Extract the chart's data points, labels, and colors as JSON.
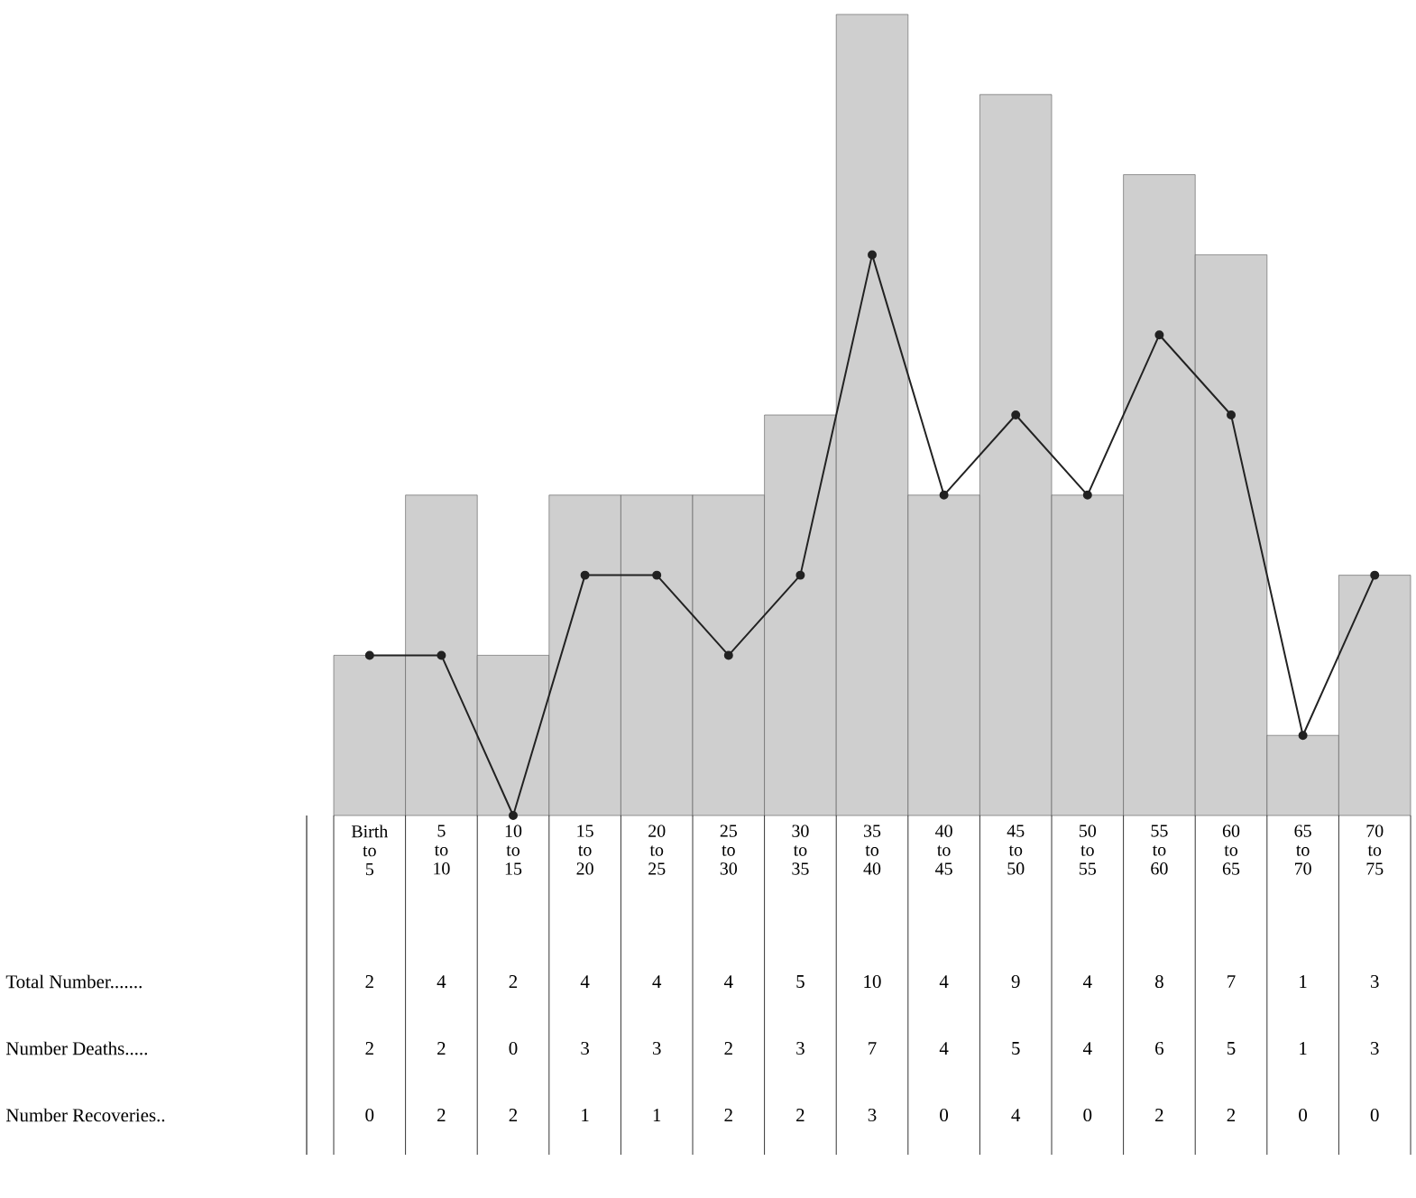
{
  "chart_data": {
    "type": "bar",
    "categories": [
      "Birth to 5",
      "5 to 10",
      "10 to 15",
      "15 to 20",
      "20 to 25",
      "25 to 30",
      "30 to 35",
      "35 to 40",
      "40 to 45",
      "45 to 50",
      "50 to 55",
      "55 to 60",
      "60 to 65",
      "65 to 70",
      "70 to 75"
    ],
    "series": [
      {
        "color": "#cfcfcf",
        "values": [
          2,
          4,
          2,
          4,
          4,
          4,
          5,
          10,
          4,
          9,
          4,
          8,
          7,
          1,
          3
        ]
      },
      {
        "type": "line",
        "marker": "circle",
        "color": "#222222",
        "values": [
          2,
          2,
          0,
          3,
          3,
          2,
          3,
          7,
          4,
          5,
          4,
          6,
          5,
          1,
          3
        ]
      }
    ],
    "annotations": [
      "Total Number.......",
      "Number Deaths.....",
      "Number Recoveries..",
      "0",
      "2",
      "2",
      "1",
      "1",
      "2",
      "2",
      "3",
      "0",
      "4",
      "0",
      "2",
      "2",
      "0",
      "0"
    ],
    "data_labels": true
  }
}
